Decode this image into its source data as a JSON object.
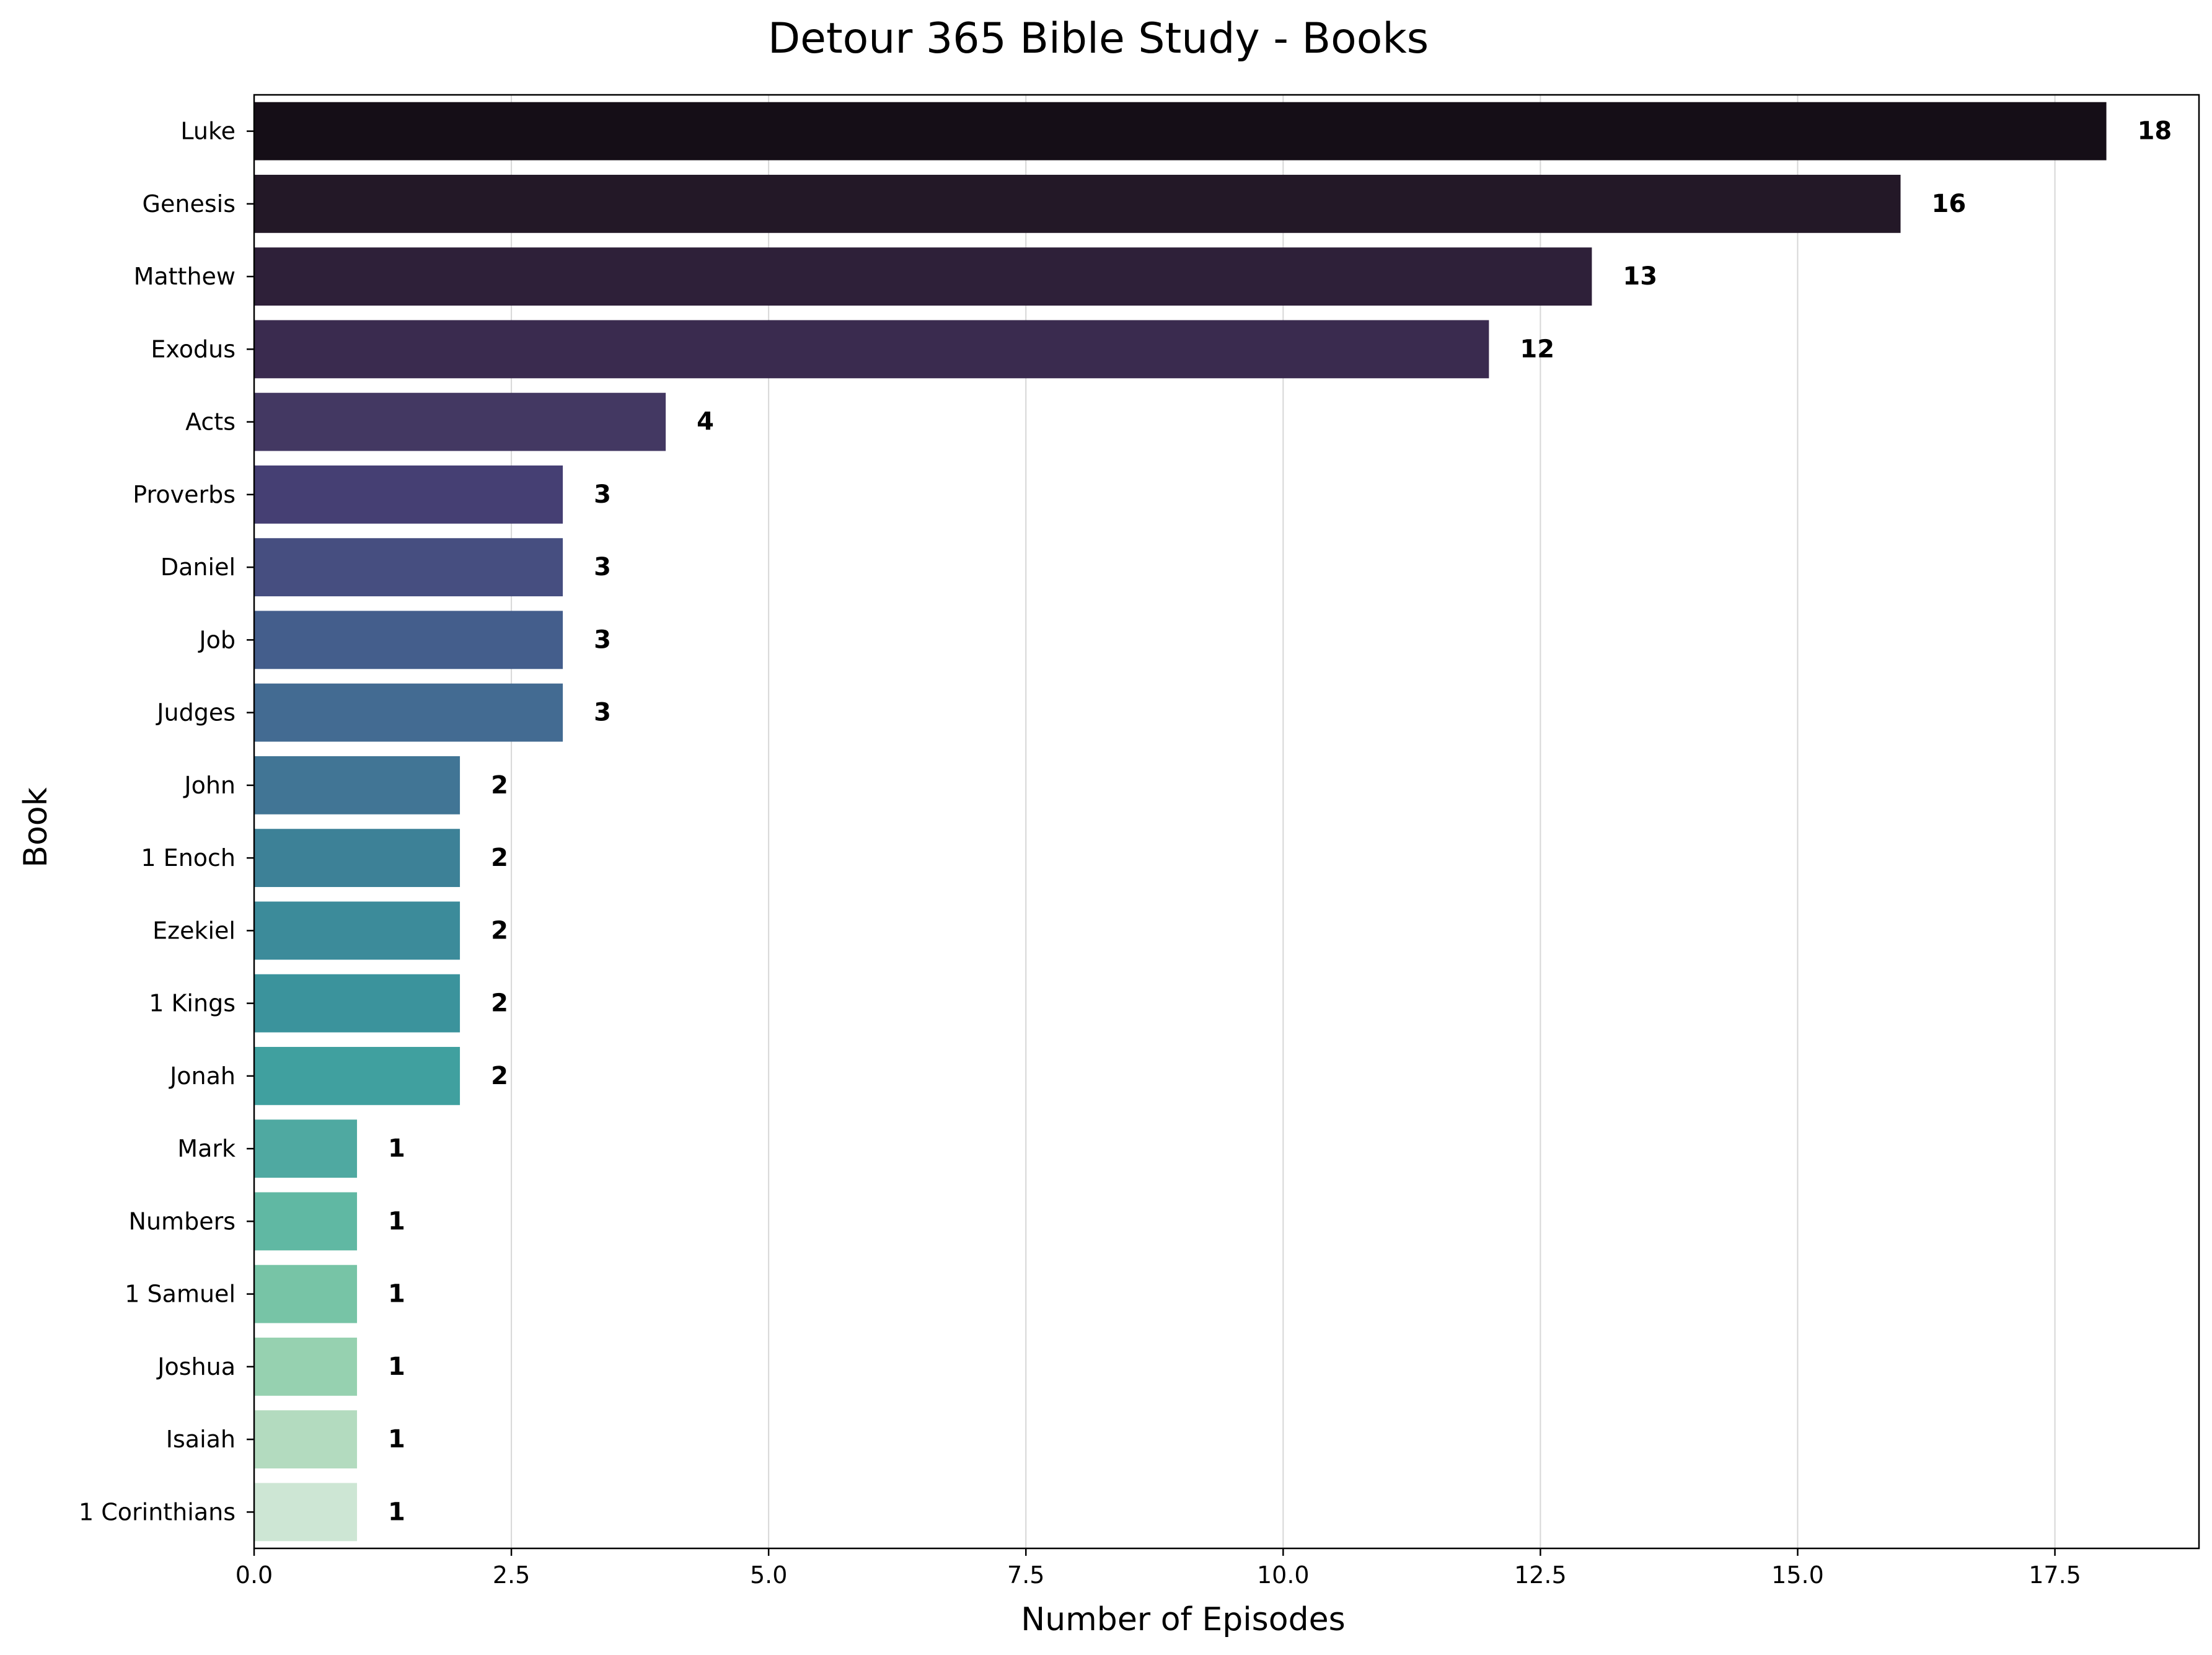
{
  "chart_data": {
    "type": "bar",
    "orientation": "horizontal",
    "title": "Detour 365 Bible Study - Books",
    "xlabel": "Number of Episodes",
    "ylabel": "Book",
    "xlim": [
      0,
      18.9
    ],
    "x_ticks": [
      "0.0",
      "2.5",
      "5.0",
      "7.5",
      "10.0",
      "12.5",
      "15.0",
      "17.5"
    ],
    "x_tick_values": [
      0,
      2.5,
      5,
      7.5,
      10,
      12.5,
      15,
      17.5
    ],
    "grid": "x",
    "legend": "none",
    "data_labels": true,
    "categories": [
      "Luke",
      "Genesis",
      "Matthew",
      "Exodus",
      "Acts",
      "Proverbs",
      "Daniel",
      "Job",
      "Judges",
      "John",
      "1 Enoch",
      "Ezekiel",
      "1 Kings",
      "Jonah",
      "Mark",
      "Numbers",
      "1 Samuel",
      "Joshua",
      "Isaiah",
      "1 Corinthians"
    ],
    "values": [
      18,
      16,
      13,
      12,
      4,
      3,
      3,
      3,
      3,
      2,
      2,
      2,
      2,
      2,
      1,
      1,
      1,
      1,
      1,
      1
    ],
    "colors": [
      "#150e17",
      "#231827",
      "#2e2039",
      "#3a2b4f",
      "#433862",
      "#453f73",
      "#464e80",
      "#445e8c",
      "#436b92",
      "#417595",
      "#3d8197",
      "#3c8b9a",
      "#3b939c",
      "#40a09f",
      "#4fa9a1",
      "#60b8a3",
      "#77c4a6",
      "#96d1b0",
      "#b3dbbf",
      "#cde6d4"
    ]
  }
}
